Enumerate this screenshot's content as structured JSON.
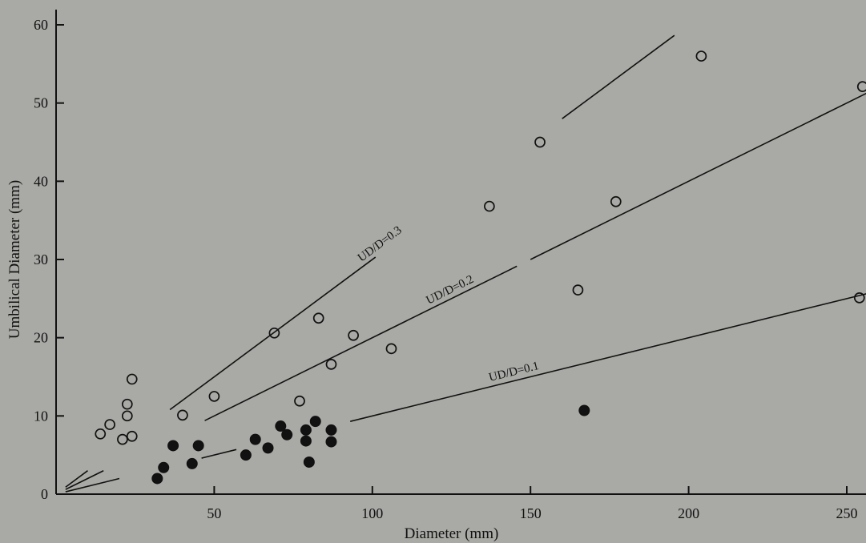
{
  "chart_data": {
    "type": "scatter",
    "title": "",
    "xlabel": "Diameter (mm)",
    "ylabel": "Umbilical Diameter (mm)",
    "xlim": [
      0,
      260
    ],
    "ylim": [
      0,
      60
    ],
    "xticks": [
      50,
      100,
      150,
      200,
      250
    ],
    "yticks": [
      0,
      10,
      20,
      30,
      40,
      50,
      60
    ],
    "grid": false,
    "legend": "none",
    "colors": {
      "background": "#a9aaa6",
      "ink": "#111111"
    },
    "series": [
      {
        "marker": "open-circle",
        "points": [
          [
            14,
            7.7
          ],
          [
            17,
            8.9
          ],
          [
            21,
            7.0
          ],
          [
            22.5,
            11.5
          ],
          [
            22.5,
            10.0
          ],
          [
            24,
            14.7
          ],
          [
            24,
            7.4
          ],
          [
            40,
            10.1
          ],
          [
            50,
            12.5
          ],
          [
            69,
            20.6
          ],
          [
            77,
            11.9
          ],
          [
            83,
            22.5
          ],
          [
            87,
            16.6
          ],
          [
            94,
            20.3
          ],
          [
            106,
            18.6
          ],
          [
            137,
            36.8
          ],
          [
            153,
            45.0
          ],
          [
            165,
            26.1
          ],
          [
            177,
            37.4
          ],
          [
            204,
            56.0
          ],
          [
            254,
            25.1
          ],
          [
            255,
            52.1
          ]
        ]
      },
      {
        "marker": "filled-circle",
        "points": [
          [
            32,
            2.0
          ],
          [
            34,
            3.4
          ],
          [
            37,
            6.2
          ],
          [
            43,
            3.9
          ],
          [
            45,
            6.2
          ],
          [
            60,
            5.0
          ],
          [
            63,
            7.0
          ],
          [
            67,
            5.9
          ],
          [
            71,
            8.7
          ],
          [
            73,
            7.6
          ],
          [
            79,
            6.8
          ],
          [
            79,
            8.2
          ],
          [
            80,
            4.1
          ],
          [
            82,
            9.3
          ],
          [
            87,
            6.7
          ],
          [
            87,
            8.2
          ],
          [
            167,
            10.7
          ]
        ]
      }
    ],
    "reference_lines": [
      {
        "label": "UD/D=0.3",
        "slope": 0.3
      },
      {
        "label": "UD/D=0.2",
        "slope": 0.2
      },
      {
        "label": "UD/D=0.1",
        "slope": 0.1
      }
    ]
  }
}
